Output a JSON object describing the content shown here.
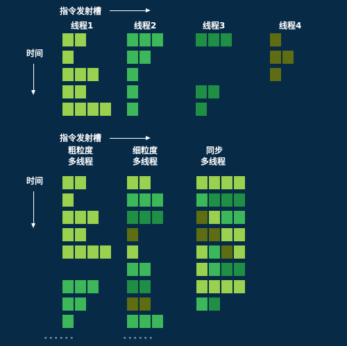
{
  "colors": {
    "background": "#072a46",
    "L": "#9ad14e",
    "M": "#3cb85a",
    "D": "#1e8f45",
    "O": "#5e6d12"
  },
  "top": {
    "slot_label": "指令发射槽",
    "time_label": "时间",
    "threads": [
      {
        "label": "线程1",
        "rows": [
          "LL",
          "L",
          "LLL",
          "LL",
          "LLLL"
        ]
      },
      {
        "label": "线程2",
        "rows": [
          "MMM",
          "MM",
          "M",
          "M",
          "M"
        ]
      },
      {
        "label": "线程3",
        "rows": [
          "DDD",
          "",
          "",
          "DD",
          "D"
        ]
      },
      {
        "label": "线程4",
        "rows": [
          "O",
          "OO",
          "O",
          "",
          ""
        ]
      }
    ]
  },
  "bottom": {
    "slot_label": "指令发射槽",
    "time_label": "时间",
    "ellipsis": "。。。。。。",
    "columns": [
      {
        "label_line1": "粗粒度",
        "label_line2": "多线程",
        "rows": [
          "LL",
          "L",
          "LLL",
          "LL",
          "LLLL",
          "",
          "MMM",
          "MM",
          "M"
        ]
      },
      {
        "label_line1": "细粒度",
        "label_line2": "多线程",
        "rows": [
          "LL",
          "MMM",
          "DDD",
          "O",
          "L",
          "MM",
          "DD",
          "OO",
          "MMM"
        ]
      },
      {
        "label_line1": "同步",
        "label_line2": "多线程",
        "rows": [
          "LLLL",
          "MDDD",
          "OLMM",
          "OOLL",
          "LMOL",
          "LMDD",
          "LLLL",
          "MD"
        ]
      }
    ]
  }
}
